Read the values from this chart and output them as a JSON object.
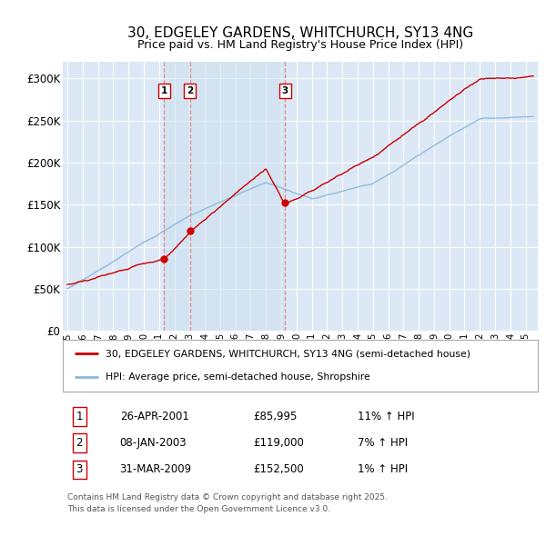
{
  "title": "30, EDGELEY GARDENS, WHITCHURCH, SY13 4NG",
  "subtitle": "Price paid vs. HM Land Registry's House Price Index (HPI)",
  "title_fontsize": 11,
  "subtitle_fontsize": 9,
  "background_color": "#ffffff",
  "plot_bg_color": "#dce8f5",
  "grid_color": "#ffffff",
  "ylim": [
    0,
    320000
  ],
  "yticks": [
    0,
    50000,
    100000,
    150000,
    200000,
    250000,
    300000
  ],
  "ytick_labels": [
    "£0",
    "£50K",
    "£100K",
    "£150K",
    "£200K",
    "£250K",
    "£300K"
  ],
  "sale_dates_num": [
    2001.32,
    2003.02,
    2009.25
  ],
  "sale_prices": [
    85995,
    119000,
    152500
  ],
  "sale_labels": [
    "1",
    "2",
    "3"
  ],
  "legend_line1": "30, EDGELEY GARDENS, WHITCHURCH, SY13 4NG (semi-detached house)",
  "legend_line2": "HPI: Average price, semi-detached house, Shropshire",
  "table_data": [
    [
      "1",
      "26-APR-2001",
      "£85,995",
      "11% ↑ HPI"
    ],
    [
      "2",
      "08-JAN-2003",
      "£119,000",
      "7% ↑ HPI"
    ],
    [
      "3",
      "31-MAR-2009",
      "£152,500",
      "1% ↑ HPI"
    ]
  ],
  "footer": "Contains HM Land Registry data © Crown copyright and database right 2025.\nThis data is licensed under the Open Government Licence v3.0.",
  "red_color": "#cc0000",
  "blue_color": "#88b8d8",
  "vline_color": "#e88080",
  "shade_color": "#ccddf0",
  "marker_color": "#cc0000"
}
